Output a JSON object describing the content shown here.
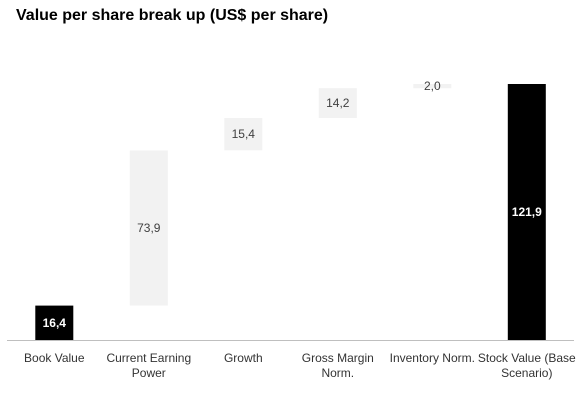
{
  "chart_data": {
    "type": "bar",
    "subtype": "waterfall",
    "title": "Value per share break up (US$ per share)",
    "xlabel": "",
    "ylabel": "",
    "grid": false,
    "legend": "none",
    "categories": [
      [
        "Book Value"
      ],
      [
        "Current Earning",
        "Power"
      ],
      [
        "Growth"
      ],
      [
        "Gross Margin",
        "Norm."
      ],
      [
        "Inventory Norm."
      ],
      [
        "Stock Value (Base",
        "Scenario)"
      ]
    ],
    "values": [
      16.4,
      73.9,
      15.4,
      14.2,
      2.0,
      121.9
    ],
    "value_labels": [
      "16,4",
      "73,9",
      "15,4",
      "14,2",
      "2,0",
      "121,9"
    ],
    "bar_roles": [
      "total",
      "increment",
      "increment",
      "increment",
      "increment",
      "total"
    ],
    "ylim": [
      0,
      121.9
    ],
    "colors": {
      "total": "#000000",
      "increment": "#f2f2f2",
      "total_label": "#ffffff",
      "increment_label": "#404040",
      "axis": "#bfbfbf"
    }
  }
}
